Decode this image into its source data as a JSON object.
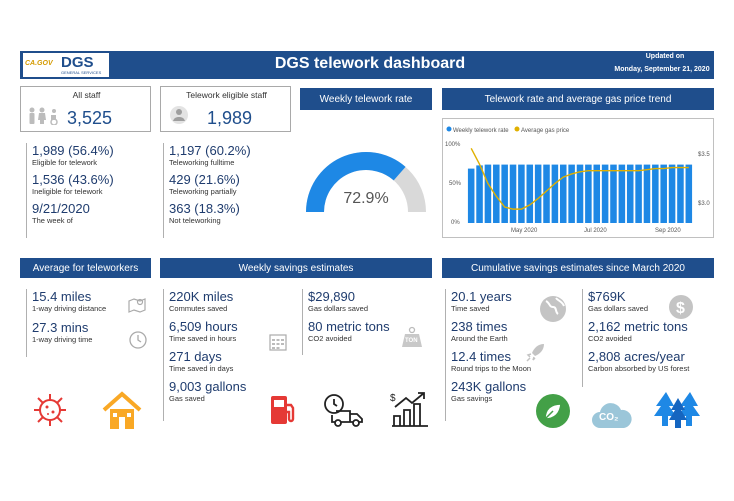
{
  "header": {
    "logo_text": "DGS",
    "logo_sub": "GENERAL SERVICES",
    "logo_ca": "CA.GOV",
    "title": "DGS telework dashboard",
    "updated_label": "Updated on",
    "updated_date": "Monday, September 21, 2020"
  },
  "kpis": {
    "all_staff": {
      "label": "All staff",
      "value": "3,525"
    },
    "eligible_staff": {
      "label": "Telework eligible staff",
      "value": "1,989"
    }
  },
  "eligibility": [
    {
      "value": "1,989 (56.4%)",
      "label": "Eligible for telework"
    },
    {
      "value": "1,536 (43.6%)",
      "label": "Ineligible for telework"
    },
    {
      "value": "9/21/2020",
      "label": "The week of"
    }
  ],
  "teleworking": [
    {
      "value": "1,197 (60.2%)",
      "label": "Teleworking fulltime"
    },
    {
      "value": "429 (21.6%)",
      "label": "Teleworking partially"
    },
    {
      "value": "363 (18.3%)",
      "label": "Not teleworking"
    }
  ],
  "gauge": {
    "title": "Weekly telework rate",
    "value_label": "72.9%",
    "fraction": 0.729
  },
  "trend": {
    "title": "Telework rate and average gas price trend",
    "legend": [
      "Weekly telework rate",
      "Average gas price"
    ],
    "y_left_ticks": [
      "100%",
      "50%",
      "0%"
    ],
    "y_right_ticks": [
      "$3.5",
      "$3.0"
    ],
    "x_ticks": [
      "May 2020",
      "Jul 2020",
      "Sep 2020"
    ],
    "colors": {
      "bar": "#1e88e5",
      "line": "#e0b000"
    }
  },
  "chart_data": {
    "type": "bar",
    "x": [
      "2020-03-22",
      "2020-03-29",
      "2020-04-05",
      "2020-04-12",
      "2020-04-19",
      "2020-04-26",
      "2020-05-03",
      "2020-05-10",
      "2020-05-17",
      "2020-05-24",
      "2020-05-31",
      "2020-06-07",
      "2020-06-14",
      "2020-06-21",
      "2020-06-28",
      "2020-07-05",
      "2020-07-12",
      "2020-07-19",
      "2020-07-26",
      "2020-08-02",
      "2020-08-09",
      "2020-08-16",
      "2020-08-23",
      "2020-08-30",
      "2020-09-06",
      "2020-09-13",
      "2020-09-20"
    ],
    "series": [
      {
        "name": "Weekly telework rate",
        "values": [
          0.68,
          0.72,
          0.73,
          0.73,
          0.73,
          0.73,
          0.73,
          0.73,
          0.73,
          0.73,
          0.73,
          0.73,
          0.73,
          0.73,
          0.73,
          0.73,
          0.73,
          0.73,
          0.73,
          0.73,
          0.73,
          0.73,
          0.73,
          0.73,
          0.73,
          0.73,
          0.73
        ]
      },
      {
        "name": "Average gas price",
        "values": [
          3.55,
          3.4,
          3.22,
          3.1,
          3.0,
          2.98,
          2.98,
          3.02,
          3.08,
          3.15,
          3.22,
          3.28,
          3.31,
          3.33,
          3.34,
          3.34,
          3.34,
          3.34,
          3.34,
          3.34,
          3.34,
          3.35,
          3.36,
          3.36,
          3.37,
          3.37,
          3.37
        ]
      }
    ],
    "ylim_left": [
      0,
      1
    ],
    "ylim_right": [
      2.85,
      3.6
    ],
    "grid": false,
    "legend": "top-left"
  },
  "avg_teleworkers": {
    "title": "Average for teleworkers",
    "items": [
      {
        "value": "15.4 miles",
        "label": "1-way driving distance"
      },
      {
        "value": "27.3 mins",
        "label": "1-way driving time"
      }
    ]
  },
  "weekly_savings": {
    "title": "Weekly savings estimates",
    "col1": [
      {
        "value": "220K miles",
        "label": "Commutes saved"
      },
      {
        "value": "6,509 hours",
        "label": "Time saved in hours"
      },
      {
        "value": "271 days",
        "label": "Time saved in days"
      },
      {
        "value": "9,003 gallons",
        "label": "Gas saved"
      }
    ],
    "col2": [
      {
        "value": "$29,890",
        "label": "Gas dollars saved"
      },
      {
        "value": "80 metric tons",
        "label": "CO2 avoided"
      }
    ]
  },
  "cumulative": {
    "title": "Cumulative savings estimates since March 2020",
    "col1": [
      {
        "value": "20.1 years",
        "label": "Time saved"
      },
      {
        "value": "238 times",
        "label": "Around the Earth"
      },
      {
        "value": "12.4 times",
        "label": "Round trips to the Moon"
      },
      {
        "value": "243K gallons",
        "label": "Gas savings"
      }
    ],
    "col2": [
      {
        "value": "$769K",
        "label": "Gas dollars saved"
      },
      {
        "value": "2,162 metric tons",
        "label": "CO2 avoided"
      },
      {
        "value": "2,808 acres/year",
        "label": "Carbon absorbed by US forest"
      }
    ],
    "co2_label": "CO₂",
    "ton_label": "TON"
  }
}
